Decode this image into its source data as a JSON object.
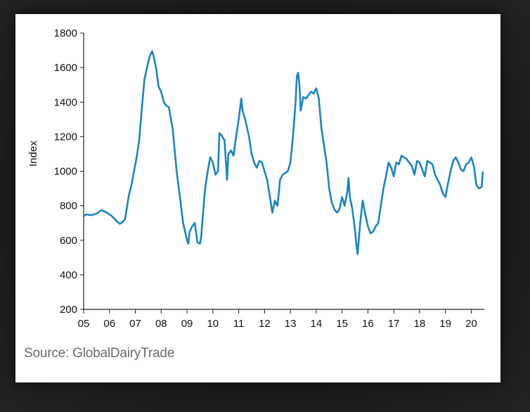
{
  "source": "Source: GlobalDairyTrade",
  "chart_data": {
    "type": "line",
    "title": "",
    "xlabel": "",
    "ylabel": "Index",
    "ylim": [
      200,
      1800
    ],
    "yticks": [
      "200",
      "400",
      "600",
      "800",
      "1000",
      "1200",
      "1400",
      "1600",
      "1800"
    ],
    "xlim": [
      2005,
      2020.45
    ],
    "xticks": [
      "05",
      "06",
      "07",
      "08",
      "09",
      "10",
      "11",
      "12",
      "13",
      "14",
      "15",
      "16",
      "17",
      "18",
      "19",
      "20"
    ],
    "grid": false,
    "color": "#1a85c0",
    "series": [
      {
        "x": [
          2005.0,
          2005.1,
          2005.3,
          2005.5,
          2005.7,
          2005.9,
          2006.1,
          2006.25,
          2006.4,
          2006.5,
          2006.6,
          2006.75,
          2006.85,
          2006.95,
          2007.05,
          2007.15,
          2007.25,
          2007.35,
          2007.45,
          2007.55,
          2007.6,
          2007.65,
          2007.7,
          2007.8,
          2007.9,
          2008.0,
          2008.1,
          2008.2,
          2008.3,
          2008.45,
          2008.6,
          2008.75,
          2008.85,
          2009.0,
          2009.05,
          2009.1,
          2009.2,
          2009.3,
          2009.4,
          2009.5,
          2009.55,
          2009.6,
          2009.7,
          2009.8,
          2009.9,
          2010.0,
          2010.1,
          2010.2,
          2010.25,
          2010.3,
          2010.45,
          2010.55,
          2010.6,
          2010.7,
          2010.8,
          2010.9,
          2011.0,
          2011.1,
          2011.15,
          2011.25,
          2011.4,
          2011.5,
          2011.6,
          2011.7,
          2011.8,
          2011.9,
          2012.0,
          2012.1,
          2012.2,
          2012.3,
          2012.4,
          2012.45,
          2012.5,
          2012.55,
          2012.6,
          2012.7,
          2012.8,
          2012.9,
          2013.0,
          2013.1,
          2013.2,
          2013.25,
          2013.3,
          2013.35,
          2013.4,
          2013.5,
          2013.6,
          2013.7,
          2013.8,
          2013.9,
          2014.0,
          2014.1,
          2014.2,
          2014.3,
          2014.4,
          2014.5,
          2014.6,
          2014.7,
          2014.8,
          2014.9,
          2015.0,
          2015.1,
          2015.2,
          2015.25,
          2015.3,
          2015.4,
          2015.5,
          2015.55,
          2015.6,
          2015.7,
          2015.8,
          2015.9,
          2016.0,
          2016.1,
          2016.2,
          2016.3,
          2016.4,
          2016.5,
          2016.6,
          2016.7,
          2016.8,
          2016.9,
          2017.0,
          2017.1,
          2017.2,
          2017.3,
          2017.4,
          2017.5,
          2017.6,
          2017.7,
          2017.8,
          2017.9,
          2018.0,
          2018.1,
          2018.2,
          2018.3,
          2018.4,
          2018.5,
          2018.6,
          2018.7,
          2018.8,
          2018.9,
          2019.0,
          2019.1,
          2019.2,
          2019.3,
          2019.4,
          2019.5,
          2019.6,
          2019.7,
          2019.8,
          2019.9,
          2020.0,
          2020.1,
          2020.2,
          2020.3,
          2020.4,
          2020.45
        ],
        "y": [
          740,
          750,
          745,
          755,
          775,
          760,
          740,
          715,
          695,
          705,
          720,
          860,
          920,
          1000,
          1080,
          1180,
          1360,
          1530,
          1600,
          1660,
          1680,
          1695,
          1670,
          1600,
          1490,
          1460,
          1400,
          1380,
          1370,
          1240,
          1000,
          820,
          700,
          600,
          580,
          650,
          680,
          700,
          590,
          580,
          620,
          720,
          900,
          1000,
          1080,
          1050,
          980,
          1000,
          1220,
          1215,
          1180,
          950,
          1100,
          1120,
          1090,
          1200,
          1300,
          1420,
          1350,
          1300,
          1200,
          1100,
          1050,
          1020,
          1060,
          1050,
          1000,
          950,
          860,
          760,
          830,
          810,
          800,
          870,
          950,
          980,
          990,
          1000,
          1050,
          1200,
          1400,
          1550,
          1570,
          1500,
          1350,
          1430,
          1420,
          1440,
          1460,
          1450,
          1480,
          1420,
          1250,
          1150,
          1050,
          900,
          820,
          780,
          760,
          780,
          850,
          800,
          880,
          960,
          850,
          780,
          660,
          580,
          520,
          700,
          830,
          750,
          680,
          640,
          650,
          680,
          700,
          800,
          900,
          970,
          1050,
          1020,
          970,
          1050,
          1040,
          1090,
          1080,
          1070,
          1050,
          1030,
          980,
          1060,
          1050,
          1010,
          970,
          1060,
          1050,
          1040,
          980,
          950,
          920,
          870,
          850,
          930,
          1000,
          1060,
          1080,
          1050,
          1010,
          1000,
          1040,
          1050,
          1080,
          1030,
          920,
          900,
          910,
          1000
        ]
      }
    ]
  }
}
